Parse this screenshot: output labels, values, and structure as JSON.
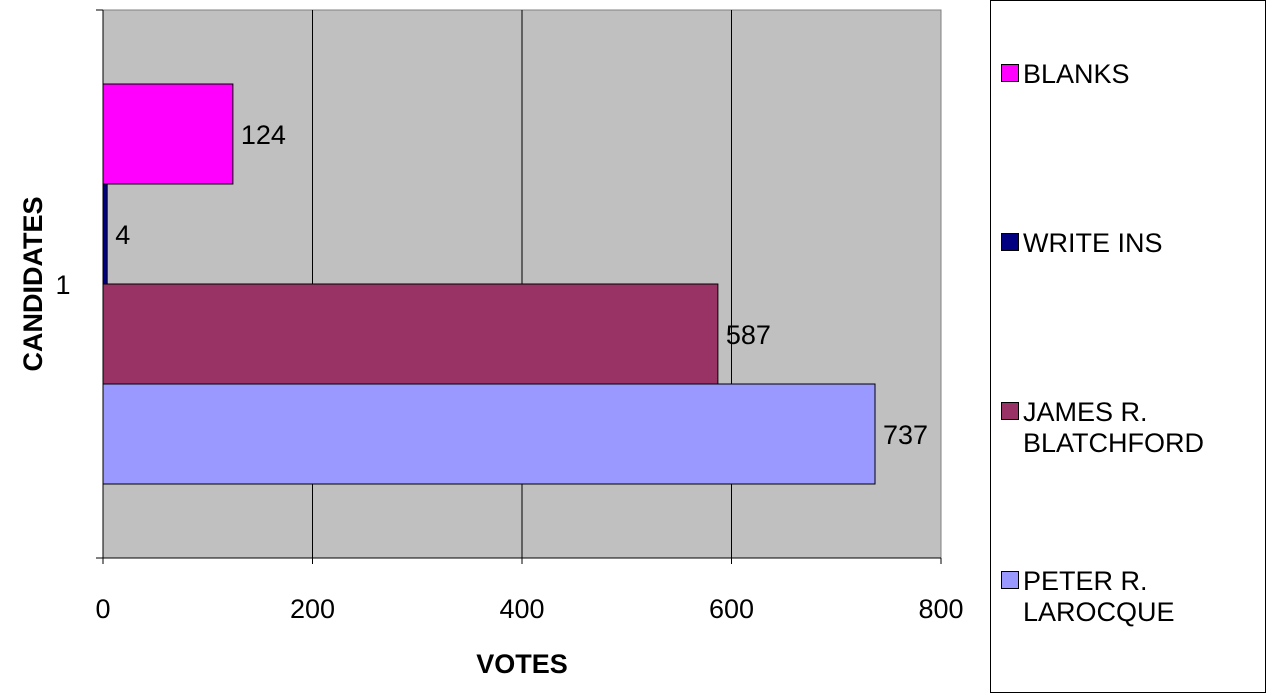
{
  "chart_data": {
    "type": "bar",
    "orientation": "horizontal",
    "categories": [
      "1"
    ],
    "series": [
      {
        "name": "PETER R. LAROCQUE",
        "values": [
          737
        ],
        "color": "#9999ff"
      },
      {
        "name": "JAMES R. BLATCHFORD",
        "values": [
          587
        ],
        "color": "#993366"
      },
      {
        "name": "WRITE INS",
        "values": [
          4
        ],
        "color": "#000080"
      },
      {
        "name": "BLANKS",
        "values": [
          124
        ],
        "color": "#ff00ff"
      }
    ],
    "data_labels": [
      "737",
      "587",
      "4",
      "124"
    ],
    "xlabel": "VOTES",
    "ylabel": "CANDIDATES",
    "xlim": [
      0,
      800
    ],
    "x_ticks": [
      "0",
      "200",
      "400",
      "600",
      "800"
    ],
    "grid": true,
    "plot_background": "#c0c0c0",
    "legend_placement": "right",
    "legend_order": [
      "BLANKS",
      "WRITE INS",
      "JAMES R. BLATCHFORD",
      "PETER R. LAROCQUE"
    ]
  }
}
